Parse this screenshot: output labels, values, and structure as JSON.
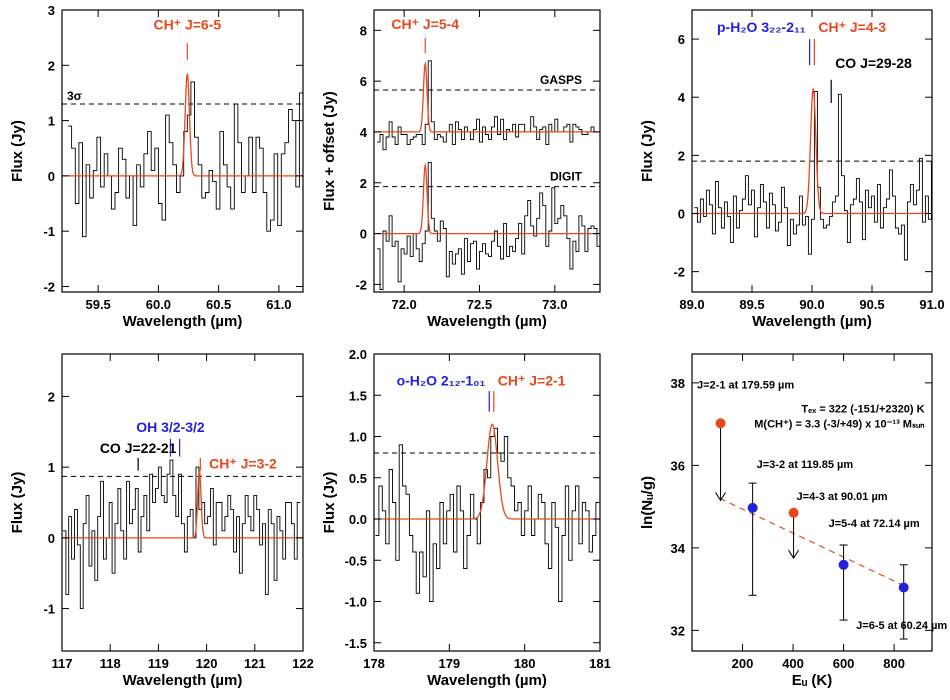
{
  "colors": {
    "model": "#e8491c",
    "water": "#2222dd",
    "black": "#000000"
  },
  "chart_data": [
    {
      "type": "line",
      "xlabel": "Wavelength (µm)",
      "ylabel": "Flux (Jy)",
      "xlim": [
        59.2,
        61.2
      ],
      "ylim": [
        -2.1,
        3.0
      ],
      "xticks": [
        59.5,
        60.0,
        60.5,
        61.0
      ],
      "xtick_labels": [
        "59.5",
        "60.0",
        "60.5",
        "61.0"
      ],
      "yticks": [
        -2,
        -1,
        0,
        1,
        2,
        3
      ],
      "ytick_labels": [
        "-2",
        "-1",
        "0",
        "1",
        "2",
        "3"
      ],
      "model": {
        "center": 60.24,
        "amp": 1.85,
        "sigma": 0.018,
        "offset": 0
      },
      "refs": [
        {
          "y": 1.3,
          "label": "3σ"
        }
      ],
      "lines": [
        {
          "x": 60.24,
          "label": "CH⁺ J=6-5",
          "color": "model",
          "tick_y": [
            2.1,
            2.4
          ],
          "text_y": 2.65
        }
      ],
      "spectrum": {
        "x0": 59.25,
        "dx": 0.03,
        "values": [
          0.9,
          0.5,
          -0.5,
          0.6,
          -1.1,
          0.2,
          -0.4,
          0.1,
          0.7,
          -0.2,
          0.4,
          0.0,
          -0.6,
          -0.3,
          0.5,
          0.3,
          -0.4,
          0.0,
          -0.9,
          0.2,
          -0.2,
          0.4,
          0.8,
          0.1,
          0.5,
          -0.5,
          -0.8,
          1.1,
          0.6,
          0.2,
          -0.3,
          0.0,
          0.8,
          1.1,
          1.7,
          0.7,
          0.2,
          -0.4,
          -0.3,
          0.1,
          -0.1,
          -0.6,
          0.8,
          0.2,
          -0.2,
          -0.6,
          1.3,
          0.6,
          -0.3,
          0.0,
          0.7,
          -0.3,
          0.7,
          0.5,
          -0.3,
          -1.0,
          -0.8,
          0.4,
          -0.9,
          0.4,
          0.6,
          1.2,
          1.0,
          -0.2,
          1.5,
          0.6,
          -0.3
        ]
      }
    },
    {
      "type": "line",
      "xlabel": "Wavelength (µm)",
      "ylabel": "Flux + offset (Jy)",
      "xlim": [
        71.8,
        73.3
      ],
      "ylim": [
        -2.3,
        8.8
      ],
      "xticks": [
        72.0,
        72.5,
        73.0
      ],
      "xtick_labels": [
        "72.0",
        "72.5",
        "73.0"
      ],
      "yticks": [
        -2,
        0,
        2,
        4,
        6,
        8
      ],
      "ytick_labels": [
        "-2",
        "0",
        "2",
        "4",
        "6",
        "8"
      ],
      "model_groups": [
        {
          "center": 72.14,
          "amp": 2.7,
          "sigma": 0.012,
          "offset": 4.0
        },
        {
          "center": 72.14,
          "amp": 2.7,
          "sigma": 0.012,
          "offset": 0.0
        }
      ],
      "refs": [
        {
          "y": 5.65,
          "label": "GASPS"
        },
        {
          "y": 1.85,
          "label": "DIGIT"
        }
      ],
      "lines": [
        {
          "x": 72.14,
          "label": "CH⁺ J=5-4",
          "color": "model",
          "tick_y": [
            7.1,
            7.7
          ],
          "text_y": 8.05
        }
      ],
      "spectra": [
        {
          "x0": 71.82,
          "dx": 0.02,
          "values": [
            3.6,
            3.9,
            3.3,
            3.8,
            4.4,
            3.8,
            3.5,
            4.2,
            3.9,
            3.9,
            3.5,
            3.7,
            3.8,
            3.9,
            3.9,
            3.5,
            4.3,
            6.8,
            4.4,
            3.7,
            3.9,
            3.8,
            3.6,
            4.0,
            4.3,
            3.5,
            4.4,
            4.1,
            3.7,
            4.2,
            4.0,
            3.7,
            4.1,
            4.5,
            3.6,
            4.2,
            3.9,
            3.7,
            4.2,
            4.6,
            3.9,
            4.5,
            3.7,
            4.1,
            4.0,
            4.3,
            3.8,
            4.3,
            4.3,
            4.0,
            4.0,
            4.6,
            4.2,
            3.7,
            4.1,
            4.2,
            3.5,
            4.3,
            4.0,
            4.5,
            4.0,
            4.0,
            4.2,
            4.3,
            3.6,
            4.3,
            4.2,
            4.1,
            3.9,
            3.9,
            4.0,
            4.2,
            4.0,
            4.0,
            3.7,
            4.0,
            3.9,
            4.7,
            3.6,
            5.0
          ]
        },
        {
          "x0": 71.82,
          "dx": 0.02,
          "values": [
            -0.6,
            -2.2,
            0.1,
            -0.3,
            0.7,
            -0.5,
            -0.3,
            -1.9,
            -0.6,
            -0.8,
            -0.1,
            -0.9,
            0.0,
            -0.6,
            -1.1,
            -0.4,
            0.1,
            2.8,
            0.6,
            0.1,
            -0.3,
            0.5,
            0.2,
            -1.7,
            -0.7,
            -1.2,
            -0.8,
            -0.6,
            -1.6,
            -0.2,
            -1.1,
            -0.4,
            -0.3,
            -1.4,
            -0.7,
            -0.4,
            -0.8,
            -0.9,
            -0.3,
            0.1,
            -0.5,
            -1.0,
            0.4,
            -0.9,
            -0.5,
            -0.7,
            -0.2,
            0.4,
            -0.8,
            0.7,
            1.3,
            0.3,
            -0.1,
            0.6,
            1.6,
            1.1,
            -0.5,
            0.1,
            1.8,
            0.4,
            0.6,
            1.1,
            0.7,
            -0.2,
            -1.4,
            -0.3,
            -0.7,
            0.7,
            0.3,
            -0.7,
            0.2,
            0.3,
            0.2,
            -0.5,
            -0.7,
            0.7,
            -0.3,
            -0.3,
            -0.6,
            -1.5
          ]
        }
      ]
    },
    {
      "type": "line",
      "xlabel": "Wavelength (µm)",
      "ylabel": "Flux (Jy)",
      "xlim": [
        89.0,
        91.0
      ],
      "ylim": [
        -2.7,
        7.0
      ],
      "xticks": [
        89.0,
        89.5,
        90.0,
        90.5,
        91.0
      ],
      "xtick_labels": [
        "89.0",
        "89.5",
        "90.0",
        "90.5",
        "91.0"
      ],
      "yticks": [
        -2,
        0,
        2,
        4,
        6
      ],
      "ytick_labels": [
        "-2",
        "0",
        "2",
        "4",
        "6"
      ],
      "model": {
        "center": 90.01,
        "amp": 4.3,
        "sigma": 0.022,
        "offset": 0
      },
      "refs": [
        {
          "y": 1.8,
          "label": ""
        }
      ],
      "lines": [
        {
          "x": 89.98,
          "label": "p-H₂O 3₂₂-2₁₁",
          "color": "water",
          "tick_y": [
            5.1,
            6.0
          ],
          "text_y": 6.25,
          "anchor": "end"
        },
        {
          "x": 90.02,
          "label": "CH⁺ J=4-3",
          "color": "model",
          "tick_y": [
            5.1,
            6.0
          ],
          "text_y": 6.25,
          "anchor": "start"
        },
        {
          "x": 90.16,
          "label": "CO J=29-28",
          "color": "black",
          "tick_y": [
            3.8,
            4.6
          ],
          "text_y": 5.0,
          "anchor": "start"
        }
      ],
      "spectrum": {
        "x0": 89.02,
        "dx": 0.025,
        "values": [
          0.2,
          -0.3,
          0.5,
          -0.1,
          0.8,
          0.3,
          -0.7,
          1.1,
          0.2,
          -0.5,
          0.4,
          -0.1,
          -1.0,
          0.6,
          -0.5,
          0.1,
          0.5,
          1.3,
          0.3,
          0.8,
          -0.8,
          0.2,
          1.0,
          0.4,
          -0.5,
          0.7,
          0.3,
          -0.6,
          -0.3,
          0.9,
          0.2,
          -1.1,
          -0.2,
          -0.7,
          -0.4,
          0.6,
          -0.4,
          -0.1,
          -1.4,
          -0.2,
          4.2,
          0.9,
          -0.2,
          -0.5,
          -0.4,
          -0.1,
          0.4,
          0.6,
          4.1,
          1.3,
          0.1,
          -1.0,
          0.3,
          0.5,
          1.2,
          0.4,
          -0.9,
          0.8,
          0.2,
          0.6,
          -0.3,
          1.0,
          -0.5,
          0.2,
          0.5,
          1.5,
          0.6,
          -0.5,
          -0.7,
          -0.4,
          -1.6,
          0.4,
          1.0,
          0.3,
          0.8,
          1.9,
          -0.3,
          0.6,
          -0.2,
          1.8
        ]
      }
    },
    {
      "type": "line",
      "xlabel": "Wavelength (µm)",
      "ylabel": "Flux (Jy)",
      "xlim": [
        117.0,
        122.0
      ],
      "ylim": [
        -1.6,
        2.6
      ],
      "xticks": [
        117,
        118,
        119,
        120,
        121,
        122
      ],
      "xtick_labels": [
        "117",
        "118",
        "119",
        "120",
        "121",
        "122"
      ],
      "yticks": [
        -1,
        0,
        1,
        2
      ],
      "ytick_labels": [
        "-1",
        "0",
        "1",
        "2"
      ],
      "model": {
        "center": 119.85,
        "amp": 0.95,
        "sigma": 0.035,
        "offset": 0
      },
      "refs": [
        {
          "y": 0.87,
          "label": ""
        }
      ],
      "lines": [
        {
          "x": 118.58,
          "label": "CO J=22-21",
          "color": "black",
          "tick_y": [
            0.95,
            1.13
          ],
          "text_y": 1.2,
          "anchor": "middle"
        },
        {
          "x": 119.25,
          "label": "OH 3/2-3/2",
          "color": "water",
          "tick_y": [
            1.15,
            1.4
          ],
          "text_y": 1.5,
          "anchor": "middle",
          "tick2_x": 119.44
        },
        {
          "x": 119.87,
          "label": "CH⁺ J=3-2",
          "color": "model",
          "tick_y": [
            0.95,
            1.13
          ],
          "text_y": 0.98,
          "anchor": "start",
          "text_dx": 0.1
        }
      ],
      "spectrum": {
        "x0": 117.02,
        "dx": 0.06,
        "values": [
          0.1,
          -0.8,
          0.3,
          -0.3,
          0.4,
          -0.1,
          -1.0,
          0.2,
          0.6,
          -0.4,
          0.1,
          -0.6,
          0.3,
          0.8,
          -0.3,
          0.0,
          0.5,
          -0.5,
          0.2,
          0.7,
          0.1,
          -0.3,
          0.8,
          0.2,
          0.4,
          0.7,
          -0.2,
          0.3,
          0.6,
          0.1,
          0.9,
          0.5,
          0.7,
          1.0,
          0.6,
          0.5,
          0.9,
          1.1,
          0.6,
          0.3,
          0.9,
          0.2,
          -0.2,
          0.3,
          0.4,
          0.0,
          1.0,
          0.4,
          0.5,
          0.2,
          0.3,
          0.7,
          -0.1,
          0.5,
          0.5,
          0.1,
          0.3,
          0.6,
          0.4,
          -0.2,
          0.3,
          -0.5,
          0.2,
          0.6,
          0.3,
          0.1,
          0.6,
          0.4,
          -0.1,
          0.2,
          -0.8,
          0.4,
          0.2,
          -0.6,
          0.3,
          0.1,
          -0.3,
          0.5,
          0.5,
          0.2,
          -0.3,
          0.5
        ]
      }
    },
    {
      "type": "line",
      "xlabel": "Wavelength (µm)",
      "ylabel": "Flux (Jy)",
      "xlim": [
        178.0,
        181.0
      ],
      "ylim": [
        -1.6,
        2.0
      ],
      "xticks": [
        178,
        179,
        180,
        181
      ],
      "xtick_labels": [
        "178",
        "179",
        "180",
        "181"
      ],
      "yticks": [
        -1.5,
        -1.0,
        -0.5,
        0.0,
        0.5,
        1.0,
        1.5,
        2.0
      ],
      "ytick_labels": [
        "-1.5",
        "-1.0",
        "-0.5",
        "0.0",
        "0.5",
        "1.0",
        "1.5",
        "2.0"
      ],
      "model": {
        "center": 179.57,
        "amp": 1.15,
        "sigma": 0.07,
        "offset": 0
      },
      "refs": [
        {
          "y": 0.8,
          "label": ""
        }
      ],
      "lines": [
        {
          "x": 179.53,
          "label": "o-H₂O 2₁₂-1₀₁",
          "color": "water",
          "tick_y": [
            1.3,
            1.55
          ],
          "text_y": 1.62,
          "anchor": "end"
        },
        {
          "x": 179.59,
          "label": "CH⁺ J=2-1",
          "color": "model",
          "tick_y": [
            1.3,
            1.55
          ],
          "text_y": 1.62,
          "anchor": "start"
        }
      ],
      "spectrum": {
        "x0": 178.02,
        "dx": 0.045,
        "values": [
          -0.2,
          0.4,
          0.1,
          -0.3,
          0.6,
          0.2,
          -0.5,
          0.9,
          0.4,
          0.3,
          -0.2,
          -0.4,
          -0.9,
          -0.4,
          -0.7,
          0.1,
          -1.0,
          -0.3,
          -0.6,
          0.2,
          -0.3,
          0.1,
          0.3,
          -0.4,
          0.4,
          0.1,
          -0.6,
          -0.2,
          0.3,
          0.0,
          -0.3,
          0.2,
          0.6,
          0.5,
          1.0,
          1.1,
          0.8,
          0.7,
          1.0,
          0.5,
          0.4,
          0.1,
          0.2,
          -0.2,
          0.1,
          0.4,
          -0.2,
          0.0,
          0.3,
          0.2,
          -0.3,
          -0.6,
          0.2,
          -0.1,
          -1.0,
          -0.2,
          0.4,
          -0.5,
          0.1,
          0.4,
          -0.3,
          0.2,
          0.1,
          -0.4,
          -0.2,
          0.2
        ]
      }
    },
    {
      "type": "scatter",
      "xlabel": "Eᵤ (K)",
      "ylabel": "ln(Nᵤ/g)",
      "xlim": [
        0,
        950
      ],
      "ylim": [
        31.5,
        38.7
      ],
      "xticks": [
        200,
        400,
        600,
        800
      ],
      "xtick_labels": [
        "200",
        "400",
        "600",
        "800"
      ],
      "yticks": [
        32,
        34,
        36,
        38
      ],
      "ytick_labels": [
        "32",
        "34",
        "36",
        "38"
      ],
      "fit": {
        "x": [
          110,
          840
        ],
        "y": [
          35.2,
          33.08
        ]
      },
      "annotation_line1": "Tₑₓ = 322 (-151/+2320) K",
      "annotation_line2": "M(CH⁺) = 3.3 (-3/+49) x 10⁻¹³ Mₛᵤₙ",
      "points": [
        {
          "x": 113,
          "y": 37.02,
          "yerr_low": null,
          "yerr_high": null,
          "limit": true,
          "limit_to": 35.15,
          "color": "model",
          "label": "J=2-1 at 179.59 µm"
        },
        {
          "x": 240,
          "y": 34.97,
          "yerr_low": 2.12,
          "yerr_high": 0.6,
          "limit": false,
          "color": "water",
          "label": "J=3-2 at 119.85 µm"
        },
        {
          "x": 402,
          "y": 34.85,
          "yerr_low": null,
          "yerr_high": null,
          "limit": true,
          "limit_to": 33.75,
          "color": "model",
          "label": "J=4-3 at 90.01 µm"
        },
        {
          "x": 600,
          "y": 33.59,
          "yerr_low": 1.34,
          "yerr_high": 0.48,
          "limit": false,
          "color": "water",
          "label": "J=5-4 at 72.14 µm"
        },
        {
          "x": 838,
          "y": 33.04,
          "yerr_low": 1.25,
          "yerr_high": 0.55,
          "limit": false,
          "color": "water",
          "label": "J=6-5 at 60.24 µm"
        }
      ]
    }
  ]
}
